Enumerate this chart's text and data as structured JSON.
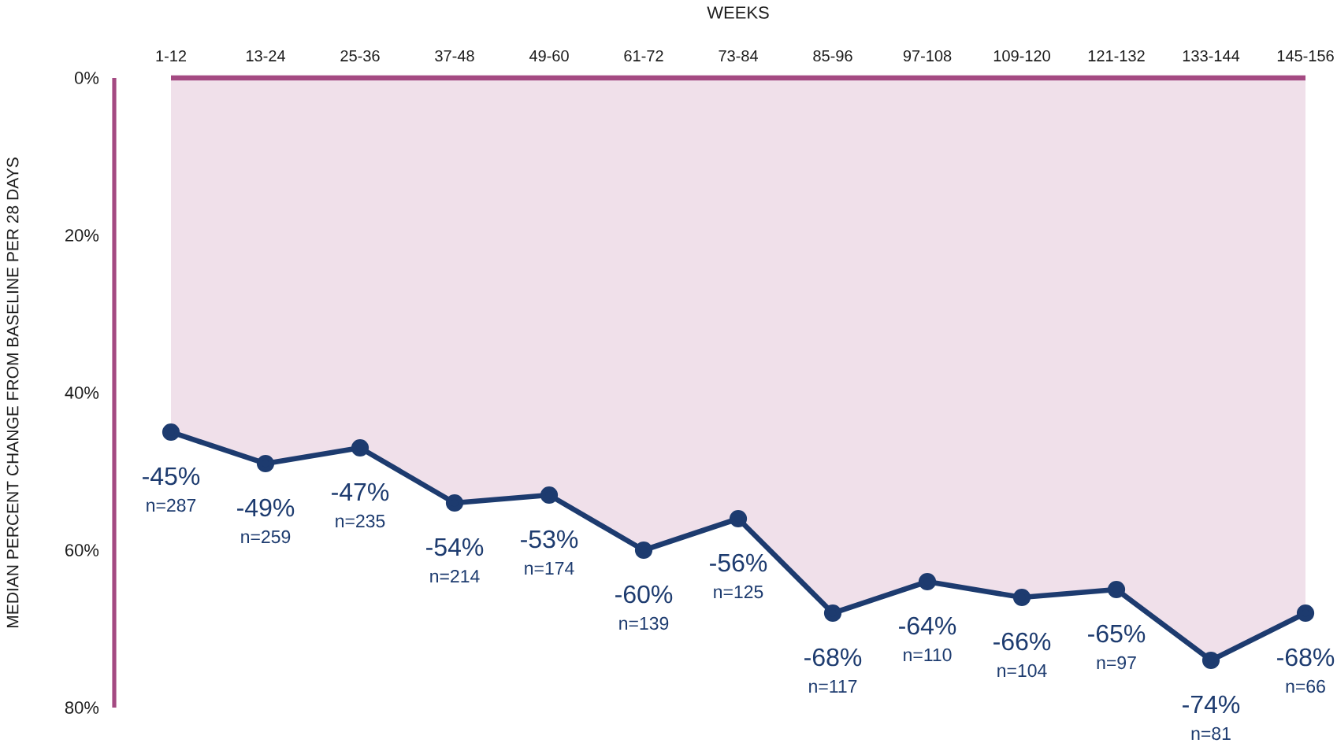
{
  "chart_data": {
    "type": "area",
    "xlabel": "WEEKS",
    "ylabel": "MEDIAN PERCENT CHANGE FROM BASELINE PER 28 DAYS",
    "categories": [
      "1-12",
      "13-24",
      "25-36",
      "37-48",
      "49-60",
      "61-72",
      "73-84",
      "85-96",
      "97-108",
      "109-120",
      "121-132",
      "133-144",
      "145-156"
    ],
    "series": [
      {
        "color": "#1d3b6f",
        "values": [
          -45,
          -49,
          -47,
          -54,
          -53,
          -60,
          -56,
          -68,
          -64,
          -66,
          -65,
          -74,
          -68
        ],
        "value_labels": [
          "-45%",
          "-49%",
          "-47%",
          "-54%",
          "-53%",
          "-60%",
          "-56%",
          "-68%",
          "-64%",
          "-66%",
          "-65%",
          "-74%",
          "-68%"
        ]
      }
    ],
    "ylim": [
      -80,
      0
    ],
    "yticks": [
      {
        "value": 0,
        "label": "0%"
      },
      {
        "value": -20,
        "label": "20%"
      },
      {
        "value": -40,
        "label": "40%"
      },
      {
        "value": -60,
        "label": "60%"
      },
      {
        "value": -80,
        "label": "80%"
      }
    ],
    "marker": "circle",
    "annotations": [
      "n=287",
      "n=259",
      "n=235",
      "n=214",
      "n=174",
      "n=139",
      "n=125",
      "n=117",
      "n=110",
      "n=104",
      "n=97",
      "n=81",
      "n=66"
    ]
  }
}
